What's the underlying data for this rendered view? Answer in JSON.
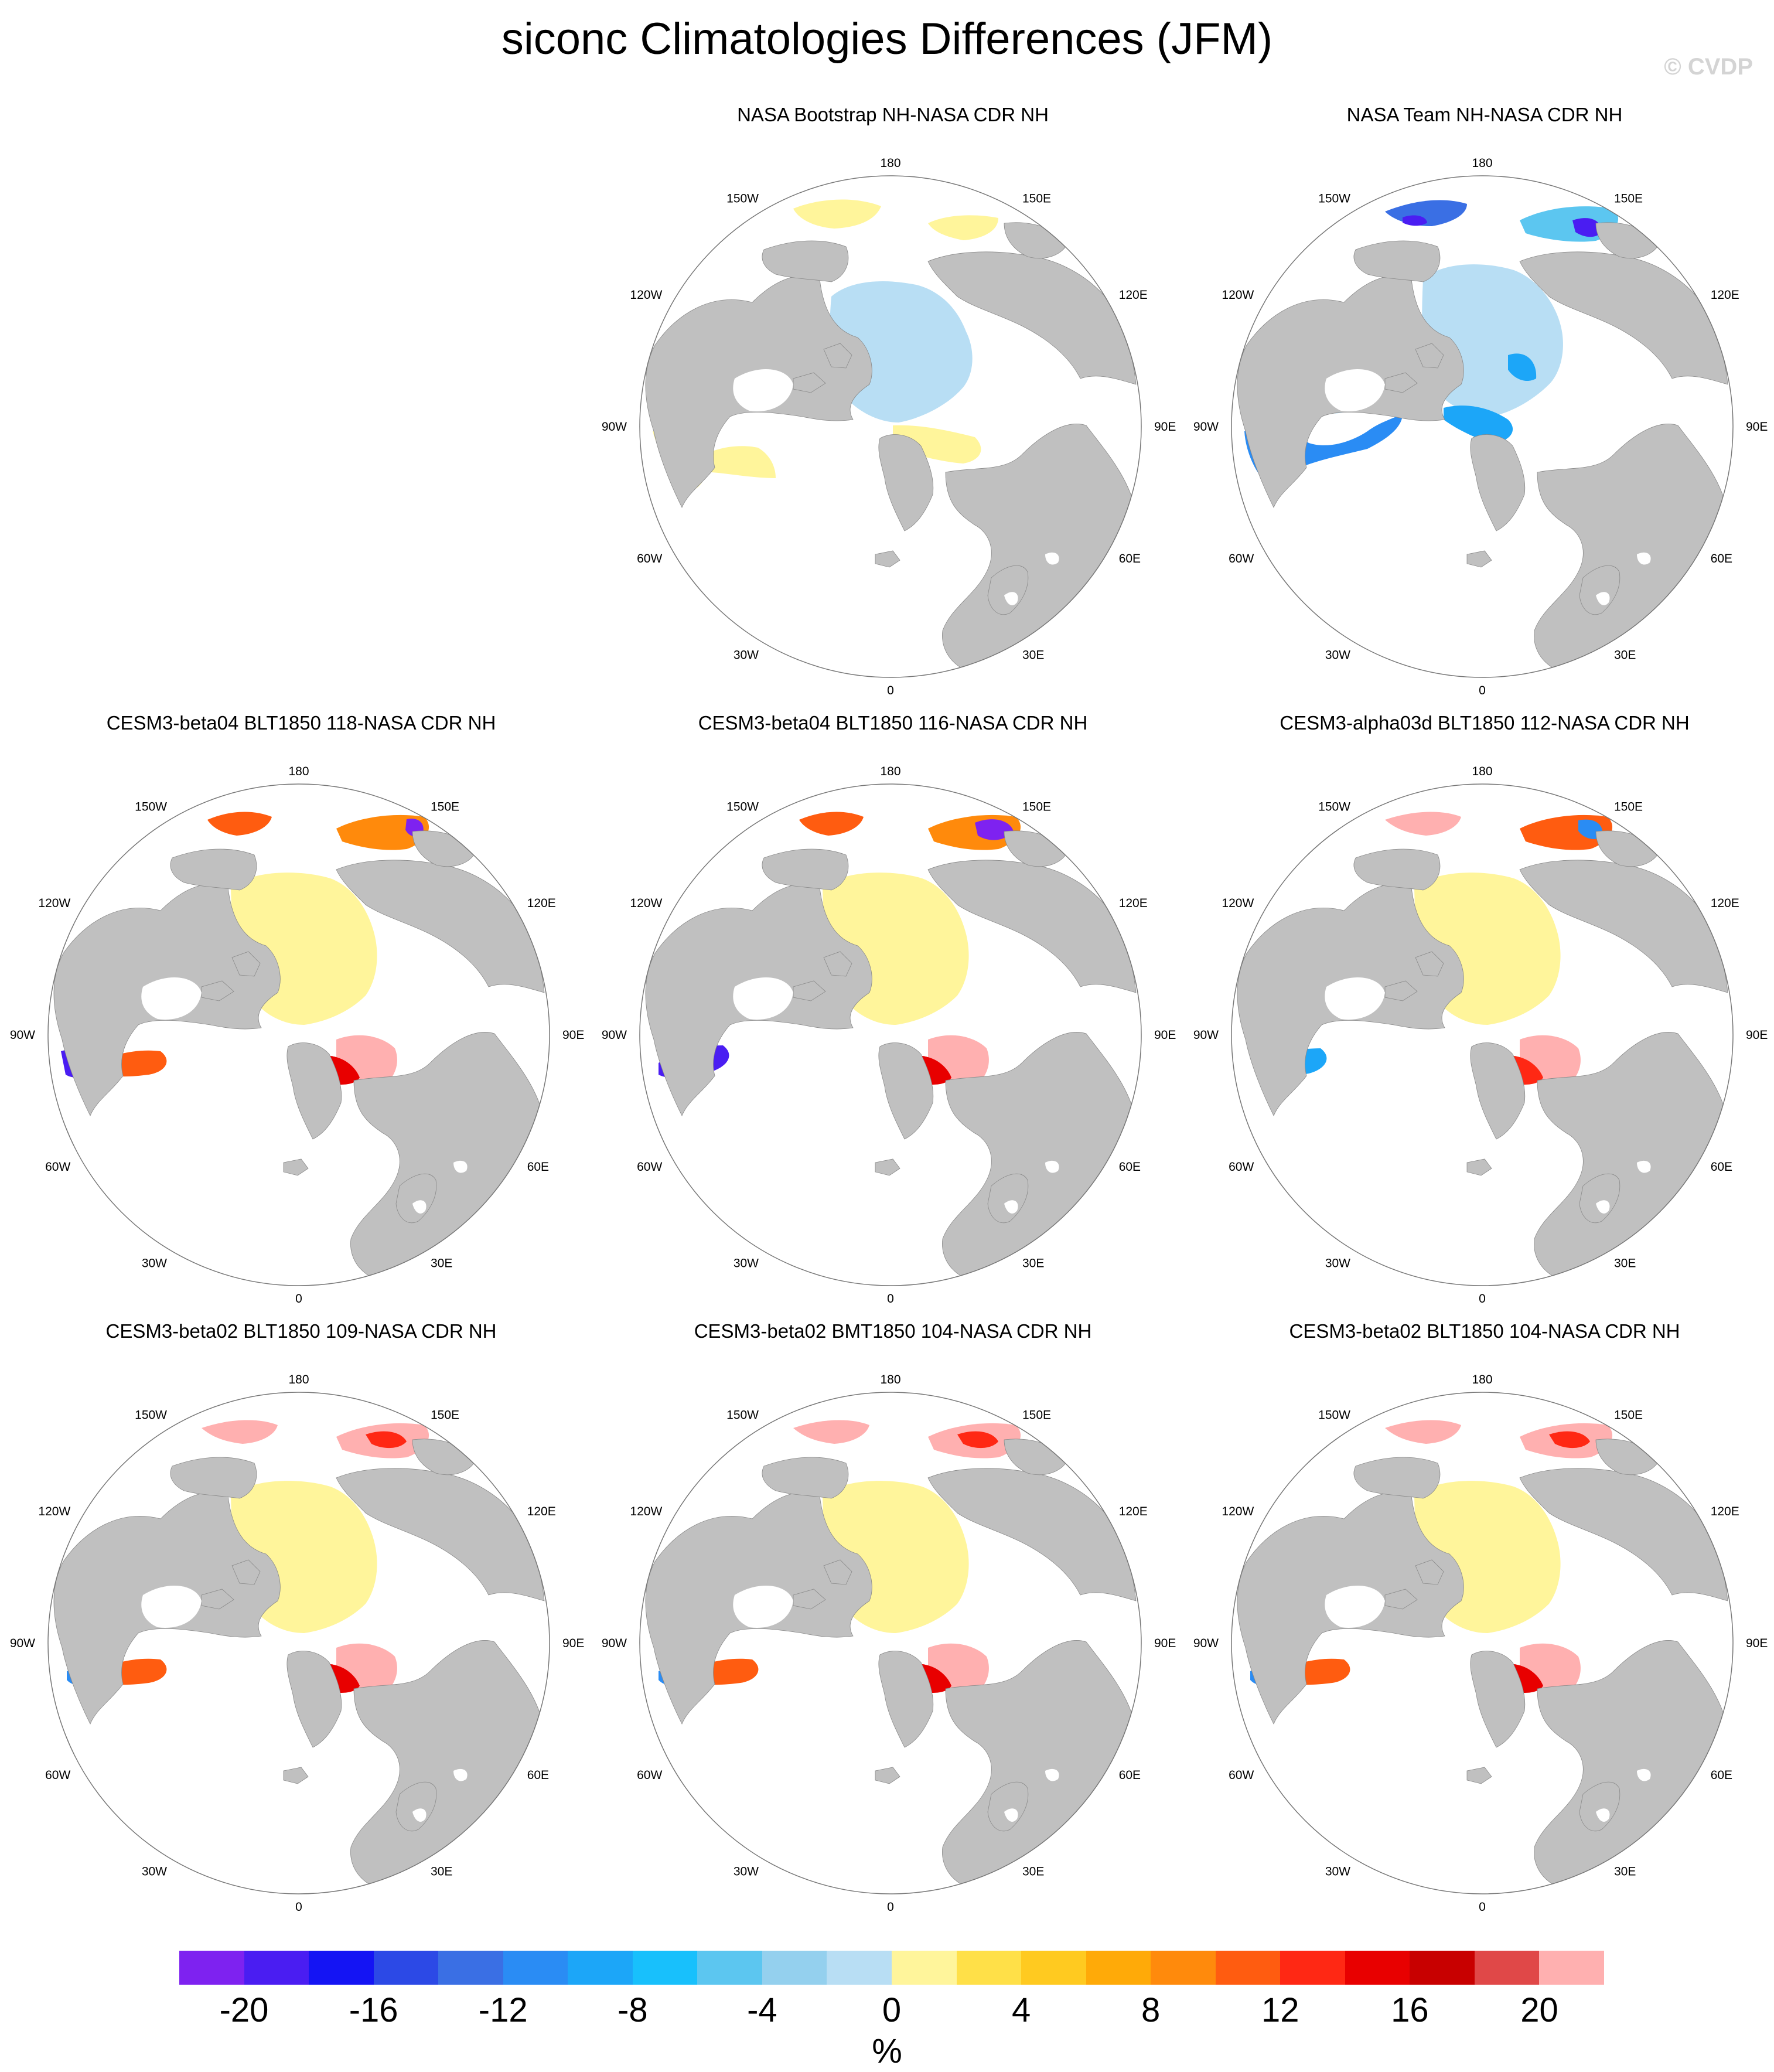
{
  "title": "siconc Climatologies Differences (JFM)",
  "watermark": "© CVDP",
  "lon_labels": {
    "top": "180",
    "top_left": "150W",
    "top_right": "150E",
    "upper_left": "120W",
    "upper_right": "120E",
    "left": "90W",
    "right": "90E",
    "lower_left": "60W",
    "lower_right": "60E",
    "bottom_left": "30W",
    "bottom_right": "30E",
    "bottom": "0"
  },
  "colors": {
    "land": "#c0c0c0",
    "ocean": "#ffffff",
    "positive_small": "#fff59b",
    "negative_small": "#b7ddf3",
    "positive_large": "#ffb0b0"
  },
  "panels": [
    {
      "title": "NASA Bootstrap NH-NASA CDR NH",
      "variant": "bootstrap"
    },
    {
      "title": "NASA Team NH-NASA CDR NH",
      "variant": "team"
    },
    {
      "title": "CESM3-beta04 BLT1850 118-NASA CDR NH",
      "variant": "model-a"
    },
    {
      "title": "CESM3-beta04 BLT1850 116-NASA CDR NH",
      "variant": "model-b"
    },
    {
      "title": "CESM3-alpha03d BLT1850 112-NASA CDR NH",
      "variant": "model-c"
    },
    {
      "title": "CESM3-beta02 BLT1850 109-NASA CDR NH",
      "variant": "model-d"
    },
    {
      "title": "CESM3-beta02 BMT1850 104-NASA CDR NH",
      "variant": "model-d"
    },
    {
      "title": "CESM3-beta02 BLT1850 104-NASA CDR NH",
      "variant": "model-d"
    }
  ],
  "colorbar": {
    "units": "%",
    "tick_labels": [
      "-20",
      "-16",
      "-12",
      "-8",
      "-4",
      "0",
      "4",
      "8",
      "12",
      "16",
      "20"
    ],
    "colors": [
      "#7e22f0",
      "#4a1df2",
      "#1414f4",
      "#2c49e6",
      "#3a6fe4",
      "#2a8cf4",
      "#1ca6f8",
      "#18c0fc",
      "#5cc6f0",
      "#94d0ee",
      "#b8def4",
      "#fff59b",
      "#ffe048",
      "#ffca20",
      "#ffaa08",
      "#ff8a0c",
      "#ff5c10",
      "#ff2814",
      "#e80000",
      "#c80000",
      "#e04848",
      "#ffb0b0"
    ]
  }
}
